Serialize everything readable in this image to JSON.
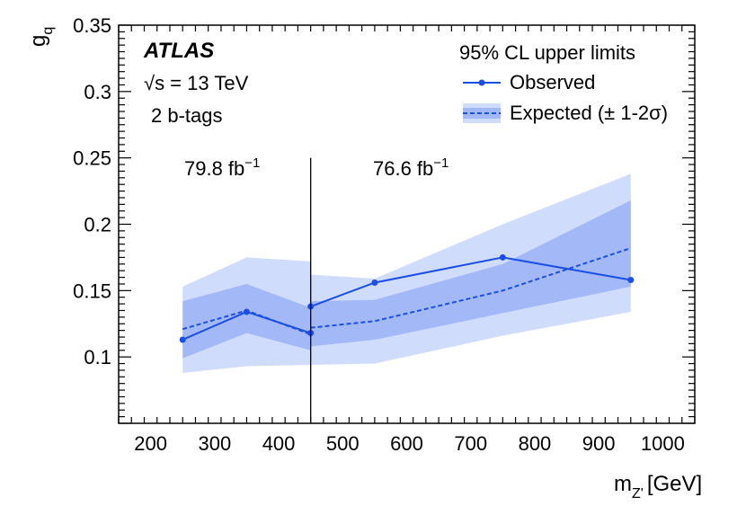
{
  "chart_data": {
    "type": "line",
    "title": "",
    "experiment": "ATLAS",
    "energy": "√s = 13 TeV",
    "selection": "2 b-tags",
    "xlabel_main": "m",
    "xlabel_sub": "Z'",
    "xlabel_unit": "[GeV]",
    "ylabel_main": "g",
    "ylabel_sub": "q",
    "xlim": [
      150,
      1050
    ],
    "ylim": [
      0.05,
      0.35
    ],
    "xticks": [
      200,
      300,
      400,
      500,
      600,
      700,
      800,
      900,
      1000
    ],
    "yticks": [
      0.1,
      0.15,
      0.2,
      0.25,
      0.3,
      0.35
    ],
    "ytick_labels": [
      "0.1",
      "0.15",
      "0.2",
      "0.25",
      "0.3",
      "0.35"
    ],
    "legend": {
      "header": "95% CL upper limits",
      "observed_label": "Observed",
      "expected_label": "Expected (± 1-2σ)",
      "position": "top-right"
    },
    "divider_x": 450,
    "divider_ymax": 0.25,
    "lumi_left": {
      "value": "79.8 fb",
      "sup": "−1"
    },
    "lumi_right": {
      "value": "76.6 fb",
      "sup": "−1"
    },
    "colors": {
      "observed": "#1a4fe6",
      "expected": "#1a4fe6",
      "band1": "#a3b8f7",
      "band2": "#d0dcfb"
    },
    "segments": [
      {
        "name": "low",
        "x": [
          250,
          350,
          450
        ],
        "observed": [
          0.113,
          0.134,
          0.118
        ],
        "expected": [
          0.121,
          0.135,
          0.117
        ],
        "band1_low": [
          0.099,
          0.118,
          0.105
        ],
        "band1_high": [
          0.142,
          0.155,
          0.137
        ],
        "band2_low": [
          0.088,
          0.093,
          0.094
        ],
        "band2_high": [
          0.153,
          0.175,
          0.172
        ]
      },
      {
        "name": "high",
        "x": [
          450,
          550,
          750,
          950
        ],
        "observed": [
          0.138,
          0.156,
          0.175,
          0.158
        ],
        "expected": [
          0.122,
          0.127,
          0.15,
          0.182
        ],
        "band1_low": [
          0.108,
          0.113,
          0.133,
          0.153
        ],
        "band1_high": [
          0.142,
          0.143,
          0.17,
          0.218
        ],
        "band2_low": [
          0.094,
          0.095,
          0.116,
          0.134
        ],
        "band2_high": [
          0.162,
          0.159,
          0.2,
          0.238
        ]
      }
    ]
  }
}
